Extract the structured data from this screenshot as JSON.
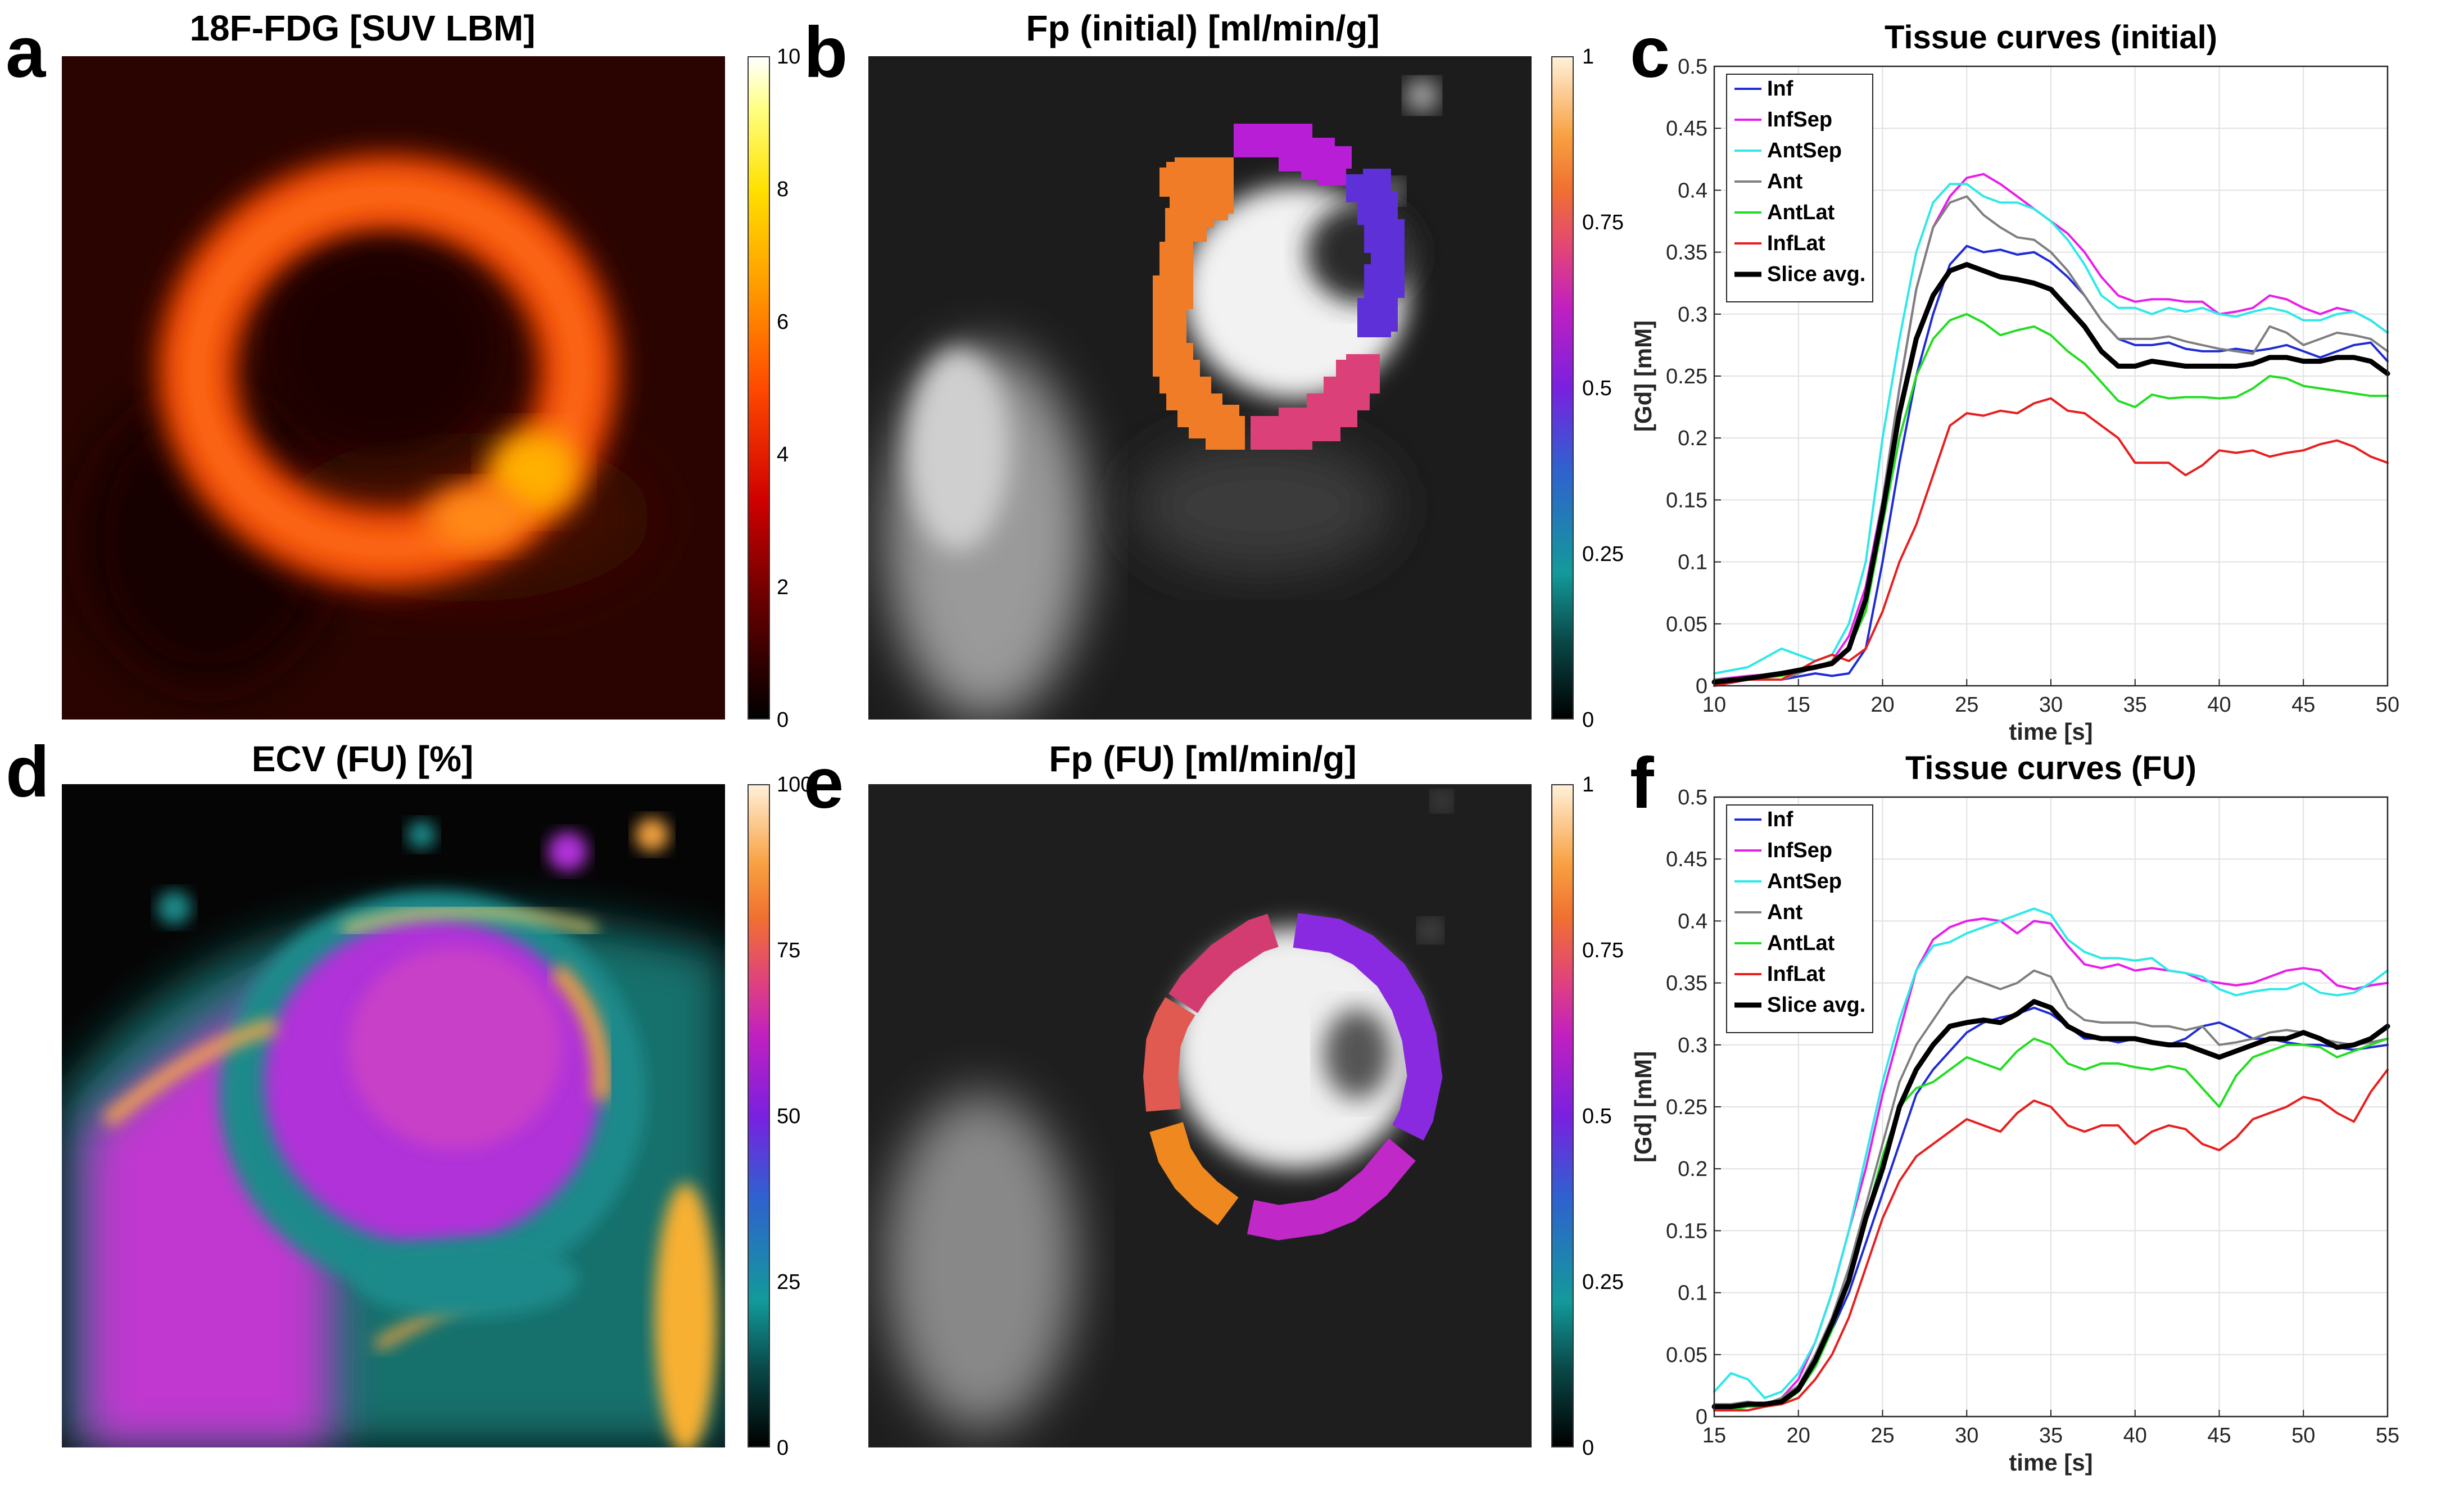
{
  "panels": {
    "a": {
      "label": "a",
      "title": "18F-FDG [SUV LBM]",
      "colorbar_ticks": [
        "10",
        "8",
        "6",
        "4",
        "2",
        "0"
      ]
    },
    "b": {
      "label": "b",
      "title": "Fp (initial) [ml/min/g]",
      "colorbar_ticks": [
        "1",
        "0.75",
        "0.5",
        "0.25",
        "0"
      ]
    },
    "c": {
      "label": "c"
    },
    "d": {
      "label": "d",
      "title": "ECV (FU) [%]",
      "colorbar_ticks": [
        "100",
        "75",
        "50",
        "25",
        "0"
      ]
    },
    "e": {
      "label": "e",
      "title": "Fp (FU) [ml/min/g]",
      "colorbar_ticks": [
        "1",
        "0.75",
        "0.5",
        "0.25",
        "0"
      ]
    },
    "f": {
      "label": "f"
    }
  },
  "chart_data": [
    {
      "id": "c",
      "type": "line",
      "title": "Tissue curves (initial)",
      "xlabel": "time [s]",
      "ylabel": "[Gd] [mM]",
      "xlim": [
        10,
        50
      ],
      "ylim": [
        0,
        0.5
      ],
      "xticks": [
        10,
        15,
        20,
        25,
        30,
        35,
        40,
        45,
        50
      ],
      "yticks": [
        0,
        0.05,
        0.1,
        0.15,
        0.2,
        0.25,
        0.3,
        0.35,
        0.4,
        0.45,
        0.5
      ],
      "grid": true,
      "legend_position": "top-left",
      "x": [
        10,
        12,
        14,
        16,
        17,
        18,
        19,
        20,
        21,
        22,
        23,
        24,
        25,
        26,
        27,
        28,
        29,
        30,
        31,
        32,
        33,
        34,
        35,
        36,
        37,
        38,
        39,
        40,
        41,
        42,
        43,
        44,
        45,
        46,
        47,
        48,
        49,
        50
      ],
      "series": [
        {
          "name": "Inf",
          "color": "#1f2bd6",
          "width": 4,
          "values": [
            0.0,
            0.005,
            0.005,
            0.01,
            0.008,
            0.01,
            0.03,
            0.1,
            0.18,
            0.25,
            0.3,
            0.34,
            0.355,
            0.35,
            0.352,
            0.348,
            0.35,
            0.342,
            0.33,
            0.315,
            0.295,
            0.28,
            0.275,
            0.275,
            0.277,
            0.272,
            0.27,
            0.27,
            0.272,
            0.27,
            0.272,
            0.275,
            0.27,
            0.265,
            0.27,
            0.275,
            0.277,
            0.262
          ]
        },
        {
          "name": "InfSep",
          "color": "#e81ee8",
          "width": 4,
          "values": [
            0.005,
            0.008,
            0.01,
            0.015,
            0.02,
            0.04,
            0.08,
            0.15,
            0.24,
            0.32,
            0.37,
            0.395,
            0.41,
            0.413,
            0.405,
            0.395,
            0.385,
            0.375,
            0.365,
            0.35,
            0.33,
            0.315,
            0.31,
            0.312,
            0.312,
            0.31,
            0.31,
            0.3,
            0.302,
            0.305,
            0.315,
            0.312,
            0.305,
            0.3,
            0.305,
            0.302,
            0.295,
            0.285
          ]
        },
        {
          "name": "AntSep",
          "color": "#2ee8e8",
          "width": 4,
          "values": [
            0.01,
            0.015,
            0.03,
            0.02,
            0.025,
            0.05,
            0.1,
            0.2,
            0.28,
            0.35,
            0.39,
            0.405,
            0.405,
            0.395,
            0.39,
            0.39,
            0.385,
            0.375,
            0.36,
            0.34,
            0.315,
            0.305,
            0.305,
            0.3,
            0.305,
            0.302,
            0.305,
            0.3,
            0.298,
            0.302,
            0.305,
            0.302,
            0.295,
            0.295,
            0.3,
            0.302,
            0.295,
            0.285
          ]
        },
        {
          "name": "Ant",
          "color": "#7f7f7f",
          "width": 4,
          "values": [
            0.005,
            0.005,
            0.005,
            0.015,
            0.02,
            0.03,
            0.07,
            0.15,
            0.24,
            0.32,
            0.37,
            0.39,
            0.395,
            0.38,
            0.37,
            0.362,
            0.36,
            0.35,
            0.335,
            0.315,
            0.295,
            0.28,
            0.28,
            0.28,
            0.282,
            0.278,
            0.275,
            0.272,
            0.27,
            0.268,
            0.29,
            0.285,
            0.275,
            0.28,
            0.285,
            0.283,
            0.28,
            0.27
          ]
        },
        {
          "name": "AntLat",
          "color": "#22dd22",
          "width": 4,
          "values": [
            0.005,
            0.005,
            0.008,
            0.015,
            0.02,
            0.03,
            0.06,
            0.13,
            0.2,
            0.25,
            0.28,
            0.295,
            0.3,
            0.293,
            0.283,
            0.287,
            0.29,
            0.283,
            0.27,
            0.26,
            0.245,
            0.23,
            0.225,
            0.235,
            0.232,
            0.233,
            0.233,
            0.232,
            0.233,
            0.24,
            0.25,
            0.248,
            0.242,
            0.24,
            0.238,
            0.236,
            0.234,
            0.234
          ]
        },
        {
          "name": "InfLat",
          "color": "#e81e1e",
          "width": 4,
          "values": [
            0.0,
            0.005,
            0.005,
            0.02,
            0.025,
            0.02,
            0.03,
            0.06,
            0.1,
            0.13,
            0.17,
            0.21,
            0.22,
            0.218,
            0.222,
            0.22,
            0.228,
            0.232,
            0.222,
            0.22,
            0.21,
            0.2,
            0.18,
            0.18,
            0.18,
            0.17,
            0.178,
            0.19,
            0.188,
            0.19,
            0.185,
            0.188,
            0.19,
            0.195,
            0.198,
            0.193,
            0.185,
            0.18
          ]
        },
        {
          "name": "Slice avg.",
          "color": "#000000",
          "width": 9,
          "values": [
            0.003,
            0.006,
            0.01,
            0.015,
            0.018,
            0.03,
            0.07,
            0.14,
            0.22,
            0.28,
            0.315,
            0.335,
            0.34,
            0.335,
            0.33,
            0.328,
            0.325,
            0.32,
            0.305,
            0.29,
            0.27,
            0.258,
            0.258,
            0.262,
            0.26,
            0.258,
            0.258,
            0.258,
            0.258,
            0.26,
            0.265,
            0.265,
            0.262,
            0.262,
            0.265,
            0.265,
            0.262,
            0.252
          ]
        }
      ]
    },
    {
      "id": "f",
      "type": "line",
      "title": "Tissue curves (FU)",
      "xlabel": "time [s]",
      "ylabel": "[Gd] [mM]",
      "xlim": [
        15,
        55
      ],
      "ylim": [
        0,
        0.5
      ],
      "xticks": [
        15,
        20,
        25,
        30,
        35,
        40,
        45,
        50,
        55
      ],
      "yticks": [
        0,
        0.05,
        0.1,
        0.15,
        0.2,
        0.25,
        0.3,
        0.35,
        0.4,
        0.45,
        0.5
      ],
      "grid": true,
      "legend_position": "top-left",
      "x": [
        15,
        16,
        17,
        18,
        19,
        20,
        21,
        22,
        23,
        24,
        25,
        26,
        27,
        28,
        29,
        30,
        31,
        32,
        33,
        34,
        35,
        36,
        37,
        38,
        39,
        40,
        41,
        42,
        43,
        44,
        45,
        46,
        47,
        48,
        49,
        50,
        51,
        52,
        53,
        54,
        55
      ],
      "series": [
        {
          "name": "Inf",
          "color": "#1f2bd6",
          "width": 4,
          "values": [
            0.01,
            0.01,
            0.008,
            0.01,
            0.012,
            0.02,
            0.04,
            0.07,
            0.1,
            0.14,
            0.18,
            0.22,
            0.26,
            0.28,
            0.295,
            0.31,
            0.318,
            0.322,
            0.325,
            0.33,
            0.325,
            0.315,
            0.305,
            0.305,
            0.302,
            0.305,
            0.302,
            0.3,
            0.305,
            0.315,
            0.318,
            0.312,
            0.305,
            0.305,
            0.302,
            0.3,
            0.3,
            0.298,
            0.296,
            0.298,
            0.3
          ]
        },
        {
          "name": "InfSep",
          "color": "#e81ee8",
          "width": 4,
          "values": [
            0.01,
            0.01,
            0.01,
            0.01,
            0.015,
            0.03,
            0.06,
            0.1,
            0.15,
            0.2,
            0.26,
            0.31,
            0.36,
            0.385,
            0.395,
            0.4,
            0.402,
            0.4,
            0.39,
            0.4,
            0.398,
            0.38,
            0.365,
            0.362,
            0.365,
            0.36,
            0.362,
            0.36,
            0.358,
            0.352,
            0.35,
            0.348,
            0.35,
            0.355,
            0.36,
            0.362,
            0.36,
            0.348,
            0.345,
            0.348,
            0.35
          ]
        },
        {
          "name": "AntSep",
          "color": "#2ee8e8",
          "width": 4,
          "values": [
            0.02,
            0.035,
            0.03,
            0.015,
            0.02,
            0.035,
            0.06,
            0.1,
            0.15,
            0.21,
            0.27,
            0.32,
            0.36,
            0.38,
            0.383,
            0.39,
            0.395,
            0.4,
            0.405,
            0.41,
            0.405,
            0.385,
            0.375,
            0.37,
            0.37,
            0.368,
            0.37,
            0.36,
            0.358,
            0.355,
            0.345,
            0.34,
            0.343,
            0.345,
            0.345,
            0.35,
            0.342,
            0.34,
            0.342,
            0.35,
            0.36
          ]
        },
        {
          "name": "Ant",
          "color": "#7f7f7f",
          "width": 4,
          "values": [
            0.01,
            0.01,
            0.012,
            0.01,
            0.015,
            0.025,
            0.05,
            0.08,
            0.12,
            0.17,
            0.22,
            0.27,
            0.3,
            0.32,
            0.34,
            0.355,
            0.35,
            0.345,
            0.35,
            0.36,
            0.355,
            0.33,
            0.32,
            0.318,
            0.318,
            0.318,
            0.315,
            0.315,
            0.312,
            0.315,
            0.3,
            0.302,
            0.305,
            0.31,
            0.312,
            0.31,
            0.305,
            0.302,
            0.3,
            0.302,
            0.305
          ]
        },
        {
          "name": "AntLat",
          "color": "#22dd22",
          "width": 4,
          "values": [
            0.005,
            0.005,
            0.008,
            0.008,
            0.01,
            0.02,
            0.04,
            0.07,
            0.11,
            0.16,
            0.21,
            0.25,
            0.265,
            0.27,
            0.28,
            0.29,
            0.285,
            0.28,
            0.295,
            0.305,
            0.3,
            0.285,
            0.28,
            0.285,
            0.285,
            0.282,
            0.28,
            0.283,
            0.28,
            0.265,
            0.25,
            0.275,
            0.29,
            0.295,
            0.3,
            0.3,
            0.298,
            0.29,
            0.295,
            0.3,
            0.305
          ]
        },
        {
          "name": "InfLat",
          "color": "#e81e1e",
          "width": 4,
          "values": [
            0.005,
            0.005,
            0.005,
            0.008,
            0.01,
            0.015,
            0.03,
            0.05,
            0.08,
            0.12,
            0.16,
            0.19,
            0.21,
            0.22,
            0.23,
            0.24,
            0.235,
            0.23,
            0.245,
            0.255,
            0.25,
            0.235,
            0.23,
            0.235,
            0.235,
            0.22,
            0.23,
            0.235,
            0.232,
            0.22,
            0.215,
            0.225,
            0.24,
            0.245,
            0.25,
            0.258,
            0.255,
            0.245,
            0.238,
            0.262,
            0.28
          ]
        },
        {
          "name": "Slice avg.",
          "color": "#000000",
          "width": 9,
          "values": [
            0.008,
            0.008,
            0.01,
            0.01,
            0.012,
            0.022,
            0.045,
            0.075,
            0.11,
            0.16,
            0.2,
            0.25,
            0.28,
            0.3,
            0.315,
            0.318,
            0.32,
            0.318,
            0.325,
            0.335,
            0.33,
            0.315,
            0.308,
            0.305,
            0.305,
            0.305,
            0.302,
            0.3,
            0.3,
            0.295,
            0.29,
            0.295,
            0.3,
            0.305,
            0.305,
            0.31,
            0.305,
            0.298,
            0.3,
            0.305,
            0.315
          ]
        }
      ]
    }
  ]
}
